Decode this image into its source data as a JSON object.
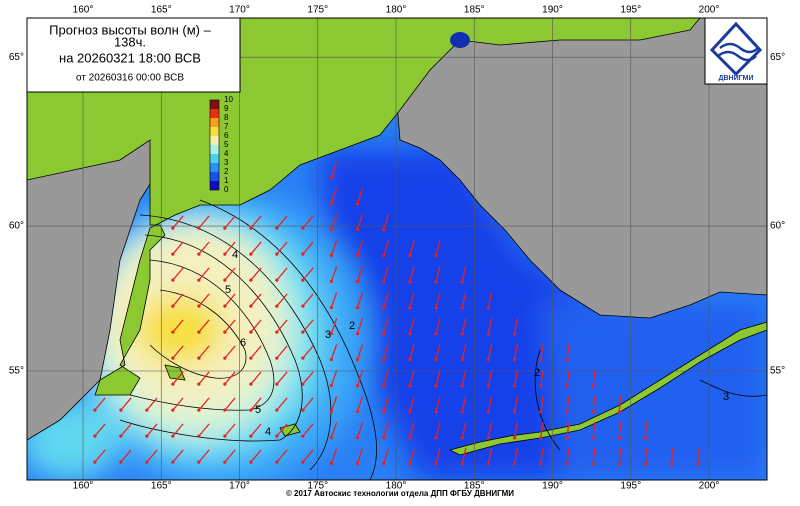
{
  "title": {
    "line1": "Прогноз высоты волн (м) –",
    "line2": "138ч.",
    "line3": "на 20260321 18:00 ВСВ",
    "line4": "от 20260316 00:00 ВСВ"
  },
  "logo": {
    "text": "ДВНИГМИ"
  },
  "footer": "© 2017 Автоскис технологии отдела ДПП ФГБУ ДВНИГМИ",
  "map": {
    "lon_ticks": [
      {
        "value": 160,
        "label": "160°"
      },
      {
        "value": 165,
        "label": "165°"
      },
      {
        "value": 170,
        "label": "170°"
      },
      {
        "value": 175,
        "label": "175°"
      },
      {
        "value": 180,
        "label": "180°"
      },
      {
        "value": 185,
        "label": "185°"
      },
      {
        "value": 190,
        "label": "190°"
      },
      {
        "value": 195,
        "label": "195°"
      },
      {
        "value": 200,
        "label": "200°"
      }
    ],
    "lat_ticks": [
      {
        "value": 65,
        "label": "65°"
      },
      {
        "value": 60,
        "label": "60°"
      },
      {
        "value": 55,
        "label": "55°"
      }
    ],
    "colorbar": {
      "ticks": [
        0,
        1,
        2,
        3,
        4,
        5,
        6,
        7,
        8,
        9,
        10
      ],
      "colors": [
        "#1010c0",
        "#1a50f0",
        "#2a90f8",
        "#50d0f0",
        "#a8f0e8",
        "#f4f0b0",
        "#f8e040",
        "#f8a020",
        "#e83010",
        "#b81010",
        "#801010"
      ]
    },
    "contour_labels": [
      "2",
      "2",
      "3",
      "4",
      "4",
      "5",
      "5",
      "6",
      "3"
    ]
  }
}
